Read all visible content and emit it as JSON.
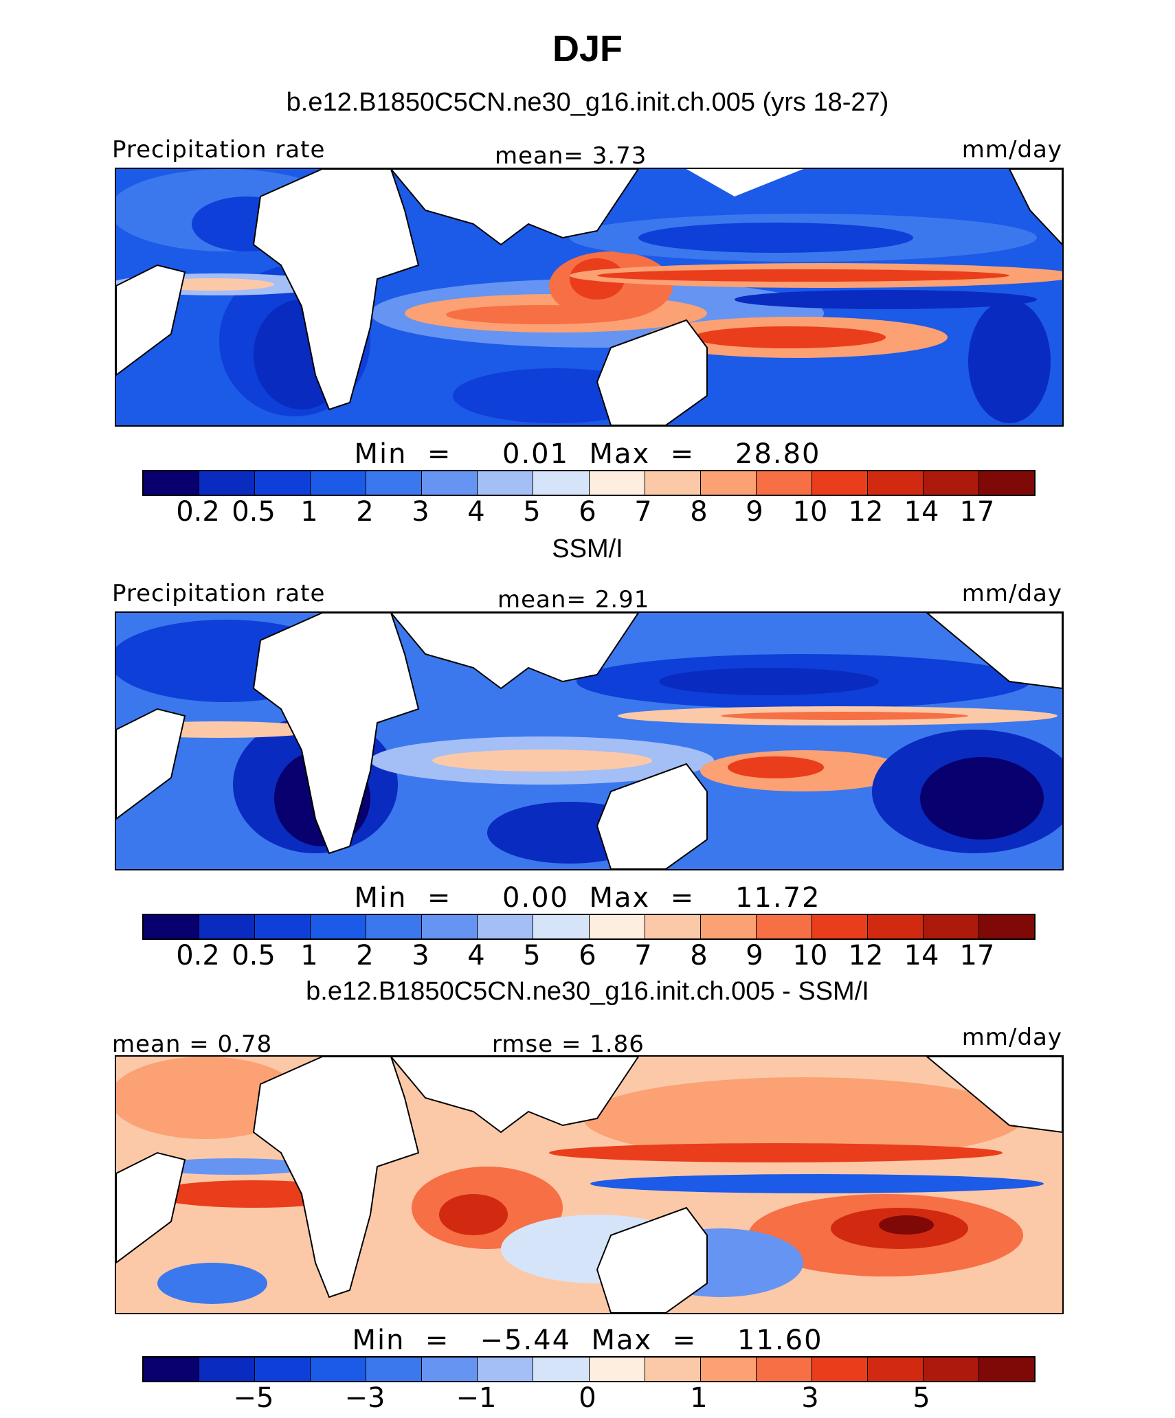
{
  "figure": {
    "title": "DJF"
  },
  "colors": {
    "scale": [
      "#08006e",
      "#0a2bc0",
      "#0e3fd8",
      "#1c5ae8",
      "#3b78ee",
      "#6694f2",
      "#a4bef6",
      "#d6e4fa",
      "#fdeedf",
      "#fcc9a8",
      "#fba173",
      "#f76f44",
      "#ea3d1c",
      "#d22a10",
      "#ad1a0b",
      "#7e0906"
    ]
  },
  "panels": [
    {
      "title": "b.e12.B1850C5CN.ne30_g16.init.ch.005 (yrs 18-27)",
      "left_label": "Precipitation rate",
      "center_label": "mean=    3.73",
      "right_label": "mm/day",
      "minmax": "Min  =     0.01  Max  =    28.80",
      "ticks": [
        "0.2",
        "0.5",
        "1",
        "2",
        "3",
        "4",
        "5",
        "6",
        "7",
        "8",
        "9",
        "10",
        "12",
        "14",
        "17"
      ]
    },
    {
      "title": "SSM/I",
      "left_label": "Precipitation rate",
      "center_label": "mean=    2.91",
      "right_label": "mm/day",
      "minmax": "Min  =     0.00  Max  =    11.72",
      "ticks": [
        "0.2",
        "0.5",
        "1",
        "2",
        "3",
        "4",
        "5",
        "6",
        "7",
        "8",
        "9",
        "10",
        "12",
        "14",
        "17"
      ]
    },
    {
      "title": "b.e12.B1850C5CN.ne30_g16.init.ch.005 - SSM/I",
      "left_label": "mean  =    0.78",
      "center_label": "rmse  =    1.86",
      "right_label": "mm/day",
      "minmax": "Min  =   −5.44  Max  =    11.60",
      "ticks": [
        "−5",
        "−3",
        "−1",
        "0",
        "1",
        "3",
        "5"
      ]
    }
  ],
  "chart_data": [
    {
      "type": "heatmap",
      "title": "b.e12.B1850C5CN.ne30_g16.init.ch.005 (yrs 18-27)",
      "variable": "Precipitation rate",
      "units": "mm/day",
      "mean": 3.73,
      "min": 0.01,
      "max": 28.8,
      "colorbar_levels": [
        0.2,
        0.5,
        1,
        2,
        3,
        4,
        5,
        6,
        7,
        8,
        9,
        10,
        12,
        14,
        17
      ]
    },
    {
      "type": "heatmap",
      "title": "SSM/I",
      "variable": "Precipitation rate",
      "units": "mm/day",
      "mean": 2.91,
      "min": 0.0,
      "max": 11.72,
      "colorbar_levels": [
        0.2,
        0.5,
        1,
        2,
        3,
        4,
        5,
        6,
        7,
        8,
        9,
        10,
        12,
        14,
        17
      ]
    },
    {
      "type": "heatmap",
      "title": "b.e12.B1850C5CN.ne30_g16.init.ch.005 - SSM/I",
      "units": "mm/day",
      "mean": 0.78,
      "rmse": 1.86,
      "min": -5.44,
      "max": 11.6,
      "colorbar_levels": [
        -5,
        -3,
        -1,
        0,
        1,
        3,
        5
      ]
    }
  ]
}
